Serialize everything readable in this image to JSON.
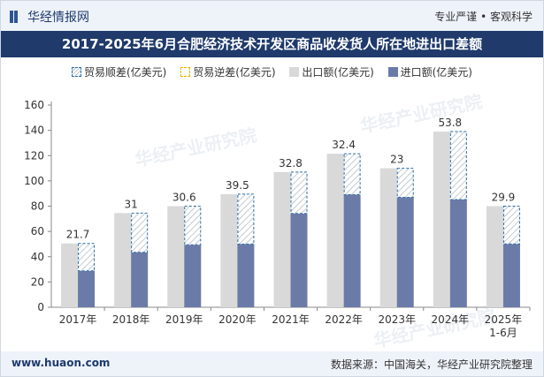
{
  "header": {
    "brand": "华经情报网",
    "slogan": "专业严谨 • 客观科学"
  },
  "chart_data": {
    "type": "bar",
    "title": "2017-2025年6月合肥经济技术开发区商品收发货人所在地进出口差额",
    "categories": [
      "2017年",
      "2018年",
      "2019年",
      "2020年",
      "2021年",
      "2022年",
      "2023年",
      "2024年",
      "2025年\n1-6月"
    ],
    "series": [
      {
        "name": "贸易顺差(亿美元)",
        "values": [
          21.7,
          31,
          30.6,
          39.5,
          32.8,
          32.4,
          23,
          53.8,
          29.9
        ]
      },
      {
        "name": "贸易逆差(亿美元)",
        "values": [
          0,
          0,
          0,
          0,
          0,
          0,
          0,
          0,
          0
        ]
      },
      {
        "name": "出口额(亿美元)",
        "values": [
          50.5,
          74.5,
          80,
          89.5,
          107,
          121.5,
          110,
          139,
          80
        ]
      },
      {
        "name": "进口额(亿美元)",
        "values": [
          28.8,
          43.5,
          49.4,
          50,
          74.2,
          89.1,
          87,
          85.2,
          50.1
        ]
      }
    ],
    "data_labels": [
      "21.7",
      "31",
      "30.6",
      "39.5",
      "32.8",
      "32.4",
      "23",
      "53.8",
      "29.9"
    ],
    "y_ticks": [
      0,
      20,
      40,
      60,
      80,
      100,
      120,
      140,
      160
    ],
    "ylim": [
      0,
      160
    ],
    "grid": false,
    "legend_position": "top",
    "colors": {
      "export": "#d9d9d9",
      "import": "#6b7ba8",
      "surplus_border": "#2e6fa8",
      "deficit_border": "#e6b400"
    }
  },
  "watermark": "华经产业研究院",
  "footer": {
    "url": "www.huaon.com",
    "source": "数据来源：中国海关，华经产业研究院整理"
  }
}
